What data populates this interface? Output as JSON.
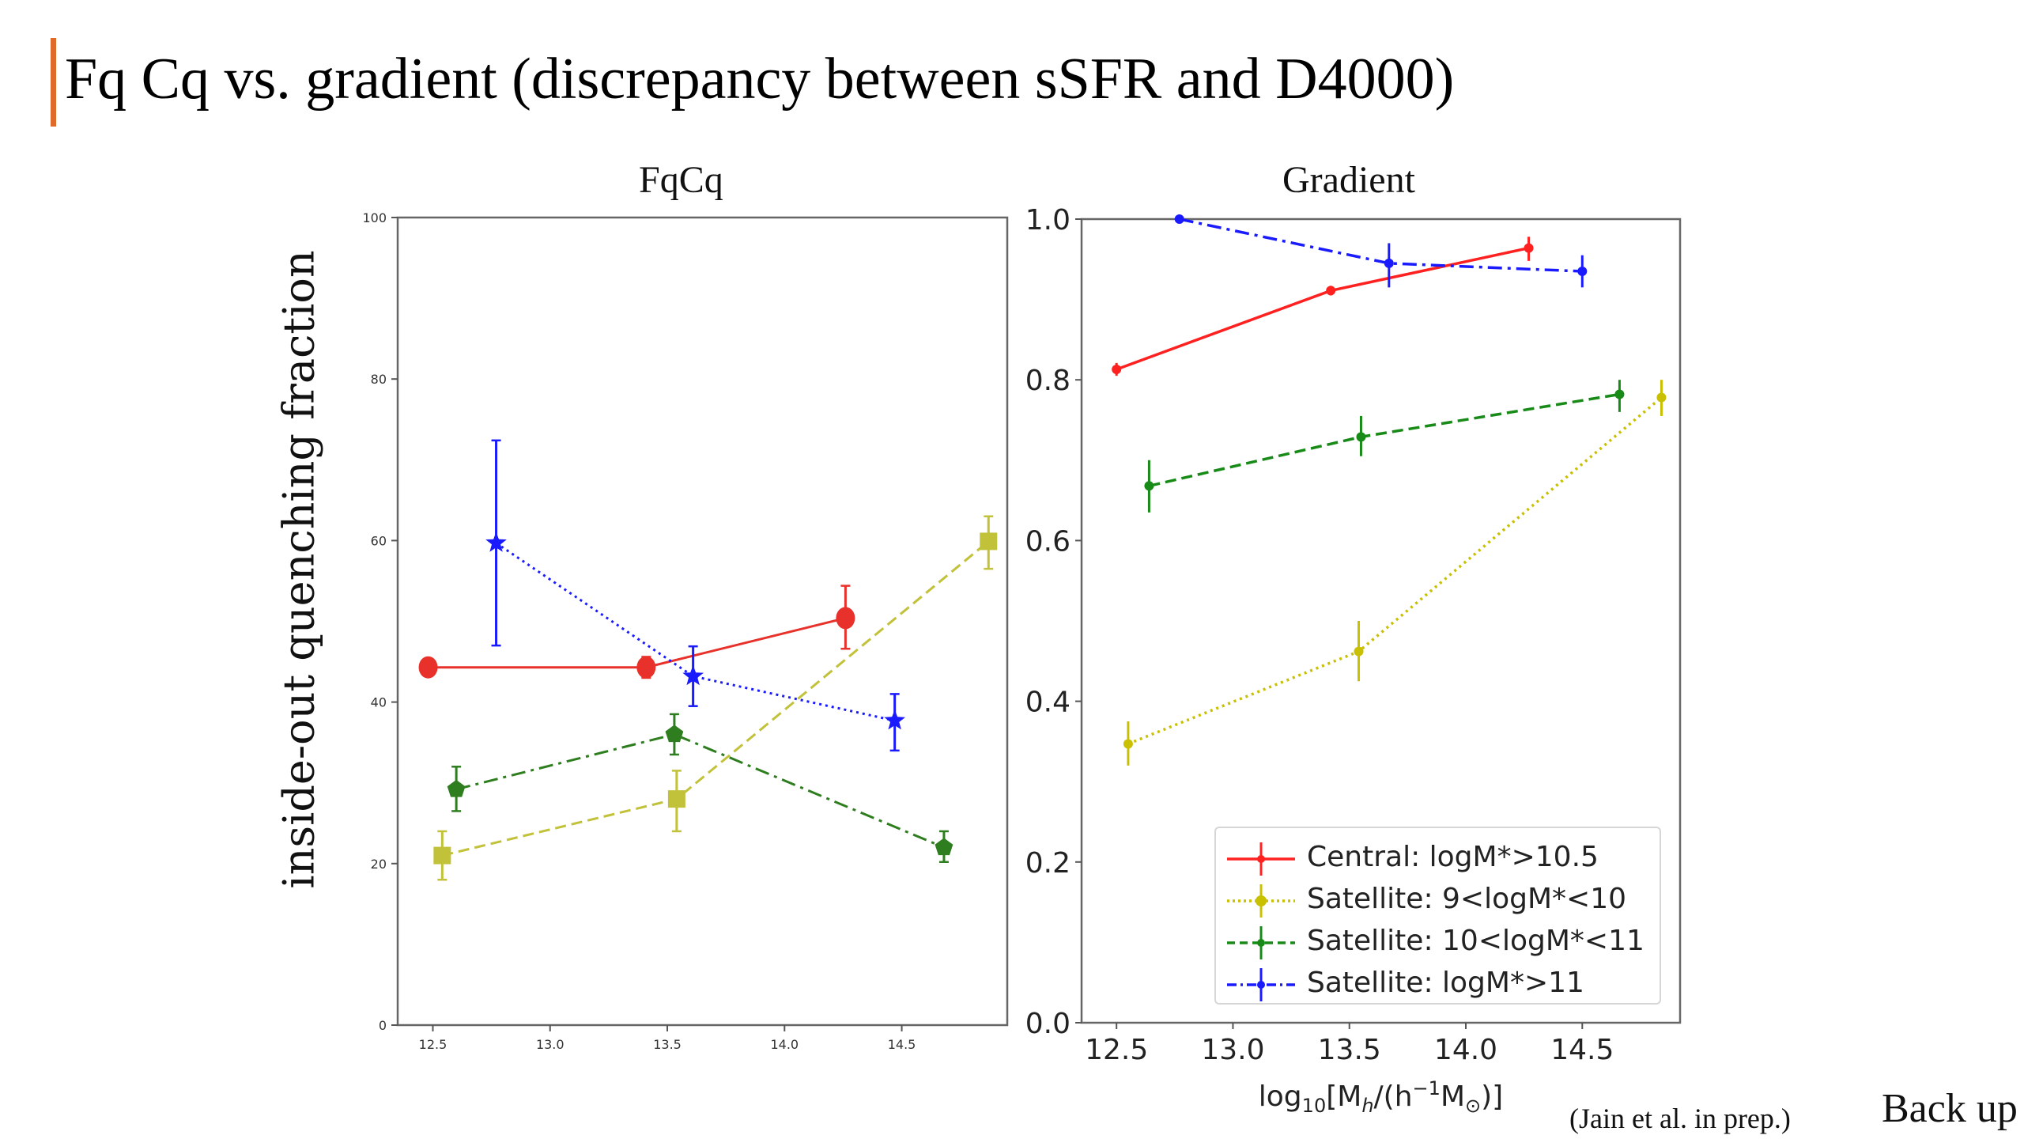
{
  "slide": {
    "title": "Fq Cq vs. gradient (discrepancy between sSFR and D4000)",
    "accent_color": "#e06a2a",
    "citation": "(Jain et al. in prep.)",
    "footer_right": "Back up"
  },
  "chart_data": [
    {
      "type": "line",
      "title": "FqCq",
      "xlabel": "",
      "ylabel": "inside-out quenching fraction",
      "xlim": [
        12.35,
        14.95
      ],
      "ylim": [
        0,
        100
      ],
      "xticks": [
        12.5,
        13.0,
        13.5,
        14.0,
        14.5
      ],
      "xtick_labels": [
        "12.5",
        "13.0",
        "13.5",
        "14.0",
        "14.5"
      ],
      "yticks": [
        0,
        20,
        40,
        60,
        80,
        100
      ],
      "ytick_labels": [
        "0",
        "20",
        "40",
        "60",
        "80",
        "100"
      ],
      "grid": false,
      "series": [
        {
          "name": "Central: logM*>10.5",
          "color": "#e8312a",
          "linestyle": "solid",
          "marker": "circle",
          "x": [
            12.48,
            13.41,
            14.26
          ],
          "y": [
            44.3,
            44.3,
            50.4
          ],
          "yerr_low": [
            43.3,
            43.0,
            46.6
          ],
          "yerr_high": [
            45.3,
            45.6,
            54.4
          ]
        },
        {
          "name": "Satellite: 9<logM*<10",
          "color": "#c2c23a",
          "linestyle": "dashed",
          "marker": "square",
          "x": [
            12.54,
            13.54,
            14.87
          ],
          "y": [
            21.0,
            28.0,
            59.9
          ],
          "yerr_low": [
            18.0,
            24.0,
            56.5
          ],
          "yerr_high": [
            24.0,
            31.5,
            63.0
          ]
        },
        {
          "name": "Satellite: 10<logM*<11",
          "color": "#2e7d1f",
          "linestyle": "dashdot",
          "marker": "pentagon",
          "x": [
            12.6,
            13.53,
            14.68
          ],
          "y": [
            29.2,
            36.0,
            22.0
          ],
          "yerr_low": [
            26.5,
            33.5,
            20.2
          ],
          "yerr_high": [
            32.0,
            38.5,
            24.0
          ]
        },
        {
          "name": "Satellite: logM*>11",
          "color": "#1a1aff",
          "linestyle": "dotted",
          "marker": "star",
          "x": [
            12.77,
            13.61,
            14.47
          ],
          "y": [
            59.7,
            43.2,
            37.7
          ],
          "yerr_low": [
            47.0,
            39.5,
            34.0
          ],
          "yerr_high": [
            72.4,
            46.9,
            41.0
          ]
        }
      ]
    },
    {
      "type": "line",
      "title": "Gradient",
      "xlabel": "log10[Mh/(h^-1 M⊙)]",
      "ylabel": "",
      "xlim": [
        12.35,
        14.92
      ],
      "ylim": [
        0.0,
        1.0
      ],
      "xticks": [
        12.5,
        13.0,
        13.5,
        14.0,
        14.5
      ],
      "xtick_labels": [
        "12.5",
        "13.0",
        "13.5",
        "14.0",
        "14.5"
      ],
      "yticks": [
        0.0,
        0.2,
        0.4,
        0.6,
        0.8,
        1.0
      ],
      "ytick_labels": [
        "0.0",
        "0.2",
        "0.4",
        "0.6",
        "0.8",
        "1.0"
      ],
      "grid": false,
      "legend_position": "lower-right",
      "series": [
        {
          "name": "Central: logM*>10.5",
          "color": "#ff2020",
          "linestyle": "solid",
          "marker": "dot",
          "x": [
            12.5,
            13.42,
            14.27
          ],
          "y": [
            0.813,
            0.911,
            0.964
          ],
          "yerr_low": [
            0.805,
            0.905,
            0.948
          ],
          "yerr_high": [
            0.821,
            0.917,
            0.978
          ]
        },
        {
          "name": "Satellite: 9<logM*<10",
          "color": "#c8c000",
          "linestyle": "dotted",
          "marker": "dot",
          "x": [
            12.55,
            13.54,
            14.84
          ],
          "y": [
            0.347,
            0.462,
            0.778
          ],
          "yerr_low": [
            0.32,
            0.425,
            0.755
          ],
          "yerr_high": [
            0.375,
            0.5,
            0.8
          ]
        },
        {
          "name": "Satellite: 10<logM*<11",
          "color": "#178a17",
          "linestyle": "dashed",
          "marker": "dot",
          "x": [
            12.64,
            13.55,
            14.66
          ],
          "y": [
            0.668,
            0.729,
            0.782
          ],
          "yerr_low": [
            0.635,
            0.705,
            0.76
          ],
          "yerr_high": [
            0.7,
            0.755,
            0.8
          ]
        },
        {
          "name": "Satellite: logM*>11",
          "color": "#1a1aff",
          "linestyle": "dashdot",
          "marker": "dot",
          "x": [
            12.77,
            13.67,
            14.5
          ],
          "y": [
            1.0,
            0.945,
            0.935
          ],
          "yerr_low": [
            0.995,
            0.915,
            0.915
          ],
          "yerr_high": [
            1.0,
            0.97,
            0.955
          ]
        }
      ]
    }
  ]
}
